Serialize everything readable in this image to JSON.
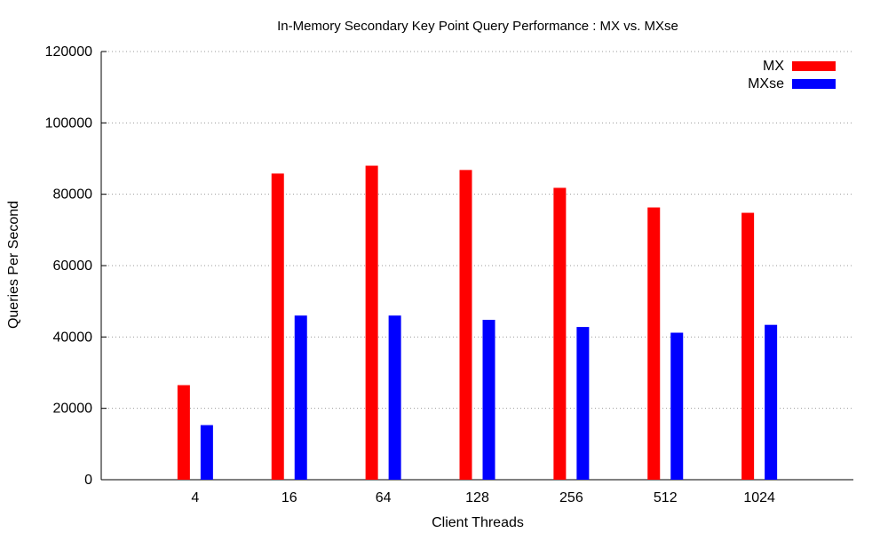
{
  "chart_data": {
    "type": "bar",
    "title": "In-Memory Secondary Key Point Query Performance : MX vs. MXse",
    "xlabel": "Client Threads",
    "ylabel": "Queries Per Second",
    "categories": [
      "4",
      "16",
      "64",
      "128",
      "256",
      "512",
      "1024"
    ],
    "series": [
      {
        "name": "MX",
        "color": "#ff0000",
        "values": [
          26500,
          85800,
          88000,
          86800,
          81800,
          76300,
          74800
        ]
      },
      {
        "name": "MXse",
        "color": "#0000ff",
        "values": [
          15300,
          46000,
          46000,
          44800,
          42800,
          41200,
          43400
        ]
      }
    ],
    "ylim": [
      0,
      120000
    ],
    "yticks": [
      0,
      20000,
      40000,
      60000,
      80000,
      100000,
      120000
    ],
    "grid": true,
    "legend_position": "top-right"
  }
}
